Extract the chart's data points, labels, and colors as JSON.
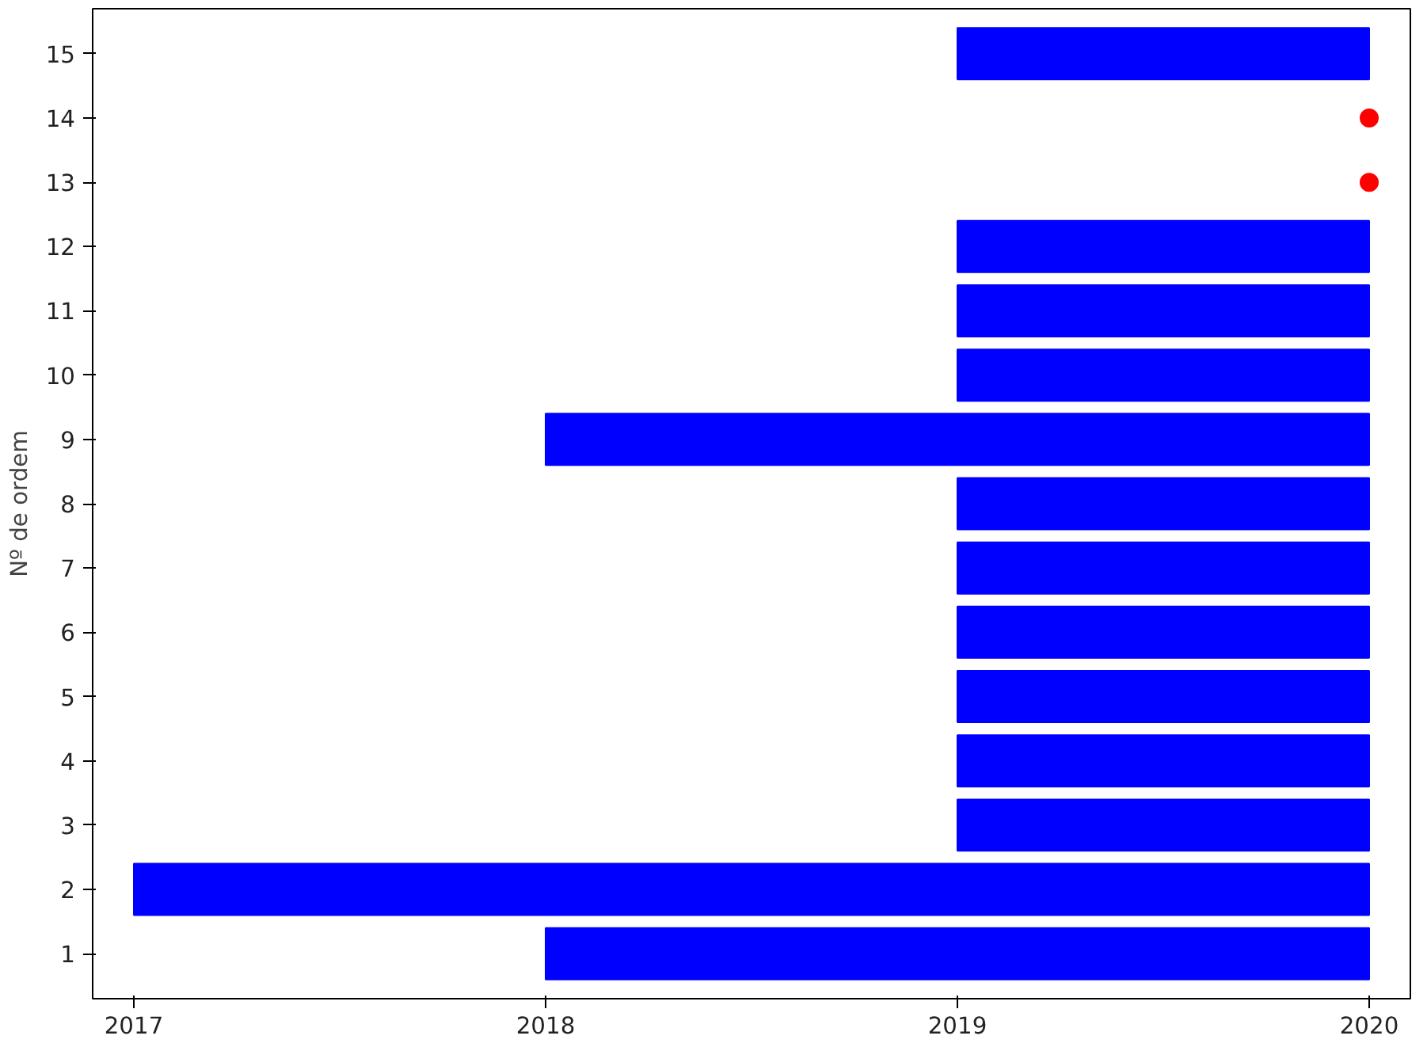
{
  "chart_data": {
    "type": "bar",
    "orientation": "horizontal",
    "ylabel": "Nº de ordem",
    "categories": [
      "15",
      "14",
      "13",
      "12",
      "11",
      "10",
      "9",
      "8",
      "7",
      "6",
      "5",
      "4",
      "3",
      "2",
      "1"
    ],
    "xlim": [
      2016.9,
      2020.1
    ],
    "xticks": [
      2017,
      2018,
      2019,
      2020
    ],
    "grid": false,
    "series": [
      {
        "color": "#0000ff",
        "values": [
          1,
          null,
          null,
          1,
          1,
          1,
          2,
          1,
          1,
          1,
          1,
          1,
          1,
          3,
          2
        ],
        "base": [
          2019,
          null,
          null,
          2019,
          2019,
          2019,
          2018,
          2019,
          2019,
          2019,
          2019,
          2019,
          2019,
          2017,
          2018
        ]
      },
      {
        "type": "scatter",
        "color": "#ff0000",
        "marker": "circle",
        "values": [
          null,
          2020,
          2020,
          null,
          null,
          null,
          null,
          null,
          null,
          null,
          null,
          null,
          null,
          null,
          null
        ]
      }
    ]
  }
}
